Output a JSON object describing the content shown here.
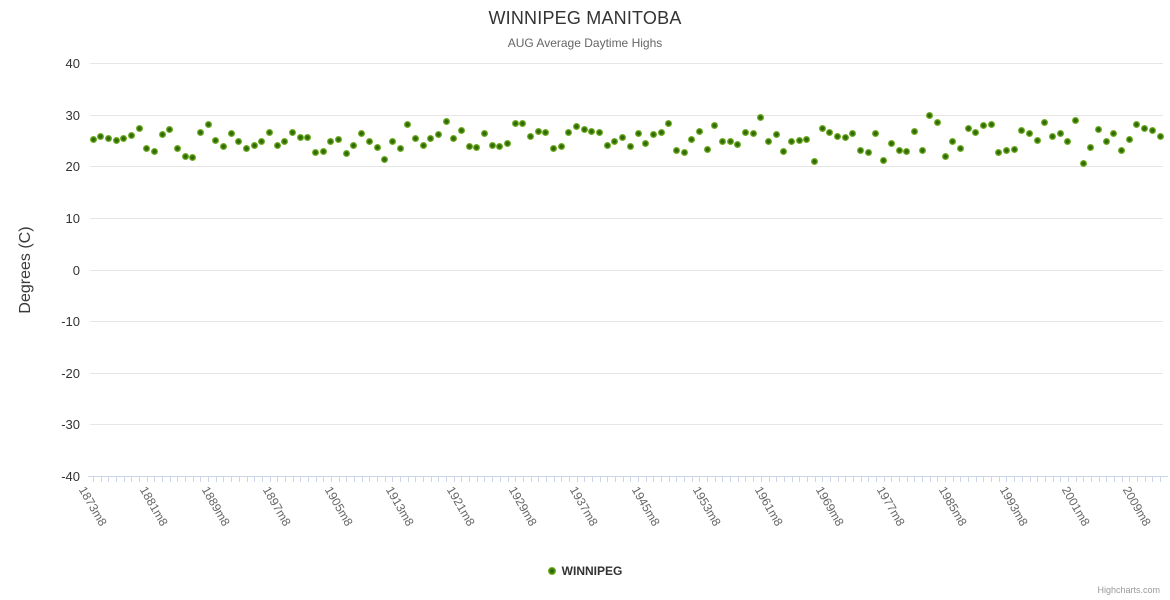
{
  "ui": {
    "credits": "Highcharts.com"
  },
  "colors": {
    "marker_center": "#2f6b04",
    "marker_mid": "#7cb82b",
    "marker_edge": "#8cc63f",
    "gridline": "#e6e6e6",
    "axis": "#ccd6eb",
    "title_text": "#333333",
    "subtitle_text": "#666666"
  },
  "chart_data": {
    "type": "scatter",
    "title": "WINNIPEG MANITOBA",
    "subtitle": "AUG Average Daytime Highs",
    "xlabel": "",
    "ylabel": "Degrees (C)",
    "ylim": [
      -40,
      40
    ],
    "y_ticks": [
      40,
      30,
      20,
      10,
      0,
      -10,
      -20,
      -30,
      -40
    ],
    "grid": "horizontal",
    "legend_position": "bottom",
    "x_start_year": 1873,
    "x_suffix": "m8",
    "x_label_every": 8,
    "x_tick_labels": [
      "1873m8",
      "1881m8",
      "1889m8",
      "1897m8",
      "1905m8",
      "1913m8",
      "1921m8",
      "1929m8",
      "1937m8",
      "1945m8",
      "1953m8",
      "1961m8",
      "1969m8",
      "1977m8",
      "1985m8",
      "1993m8",
      "2001m8",
      "2009m8"
    ],
    "series": [
      {
        "name": "WINNIPEG",
        "values": [
          25.2,
          25.8,
          25.3,
          24.9,
          25.3,
          25.9,
          27.4,
          23.5,
          22.9,
          26.1,
          27.1,
          23.4,
          21.9,
          21.6,
          26.5,
          28.1,
          25.0,
          23.9,
          26.3,
          24.7,
          23.5,
          24.0,
          24.7,
          26.5,
          24.0,
          24.7,
          26.5,
          25.6,
          25.6,
          22.7,
          22.9,
          24.8,
          25.2,
          22.5,
          24.0,
          26.3,
          24.7,
          23.7,
          21.3,
          24.8,
          23.5,
          28.1,
          25.3,
          24.0,
          25.3,
          26.2,
          28.7,
          25.3,
          26.9,
          23.9,
          23.7,
          26.3,
          24.0,
          23.8,
          24.5,
          28.2,
          28.2,
          25.8,
          26.8,
          26.6,
          23.5,
          23.9,
          26.6,
          27.7,
          27.2,
          26.8,
          26.6,
          24.0,
          24.8,
          25.5,
          23.9,
          26.4,
          24.5,
          26.1,
          26.6,
          28.2,
          23.0,
          22.6,
          25.2,
          26.8,
          23.2,
          27.9,
          24.7,
          24.7,
          24.2,
          26.5,
          26.4,
          29.5,
          24.7,
          26.1,
          22.9,
          24.7,
          25.0,
          25.2,
          20.9,
          27.4,
          26.6,
          25.8,
          25.6,
          26.4,
          23.1,
          22.7,
          26.4,
          21.1,
          24.5,
          23.1,
          22.9,
          26.8,
          23.1,
          29.8,
          28.4,
          21.8,
          24.8,
          23.5,
          27.3,
          26.5,
          27.9,
          28.1,
          22.7,
          23.0,
          23.3,
          26.9,
          26.3,
          25.0,
          28.4,
          25.7,
          26.3,
          24.8,
          28.9,
          20.6,
          23.7,
          27.2,
          24.7,
          26.3,
          23.1,
          25.2,
          28.1,
          27.4,
          26.9,
          25.8
        ]
      }
    ]
  }
}
